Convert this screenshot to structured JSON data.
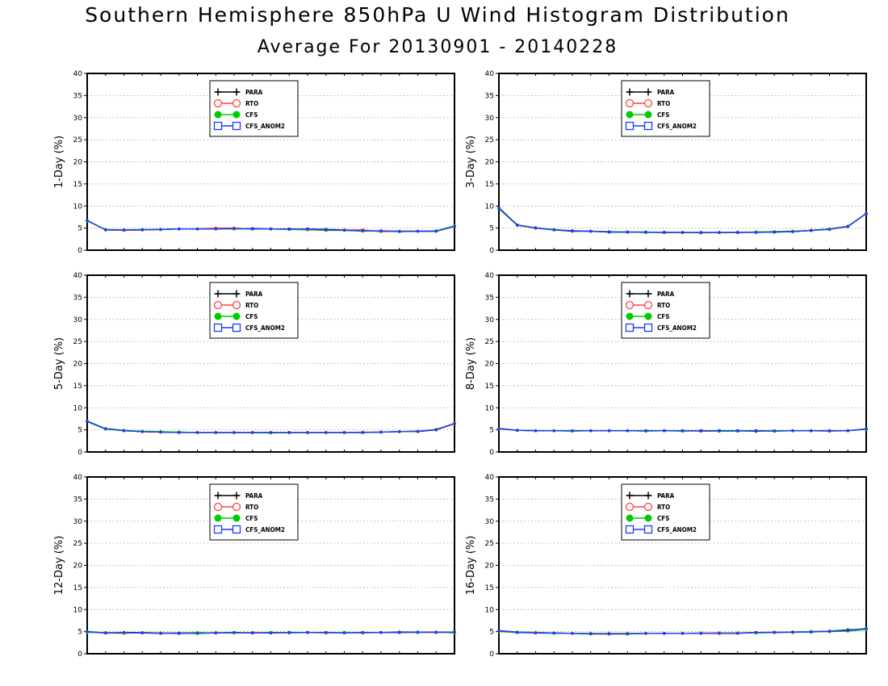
{
  "title": "Southern Hemisphere 850hPa U Wind Histogram Distribution",
  "subtitle": "Average For 20130901 - 20140228",
  "colors": {
    "PARA": "#000000",
    "RTO": "#ff4040",
    "CFS": "#00cc00",
    "CFS_ANOM2": "#1a3aff",
    "grid": "#999999"
  },
  "chart_data": [
    {
      "type": "line",
      "ylabel": "1-Day (%)",
      "ylim": [
        0,
        40
      ],
      "yticks": [
        "0",
        "5",
        "10",
        "15",
        "20",
        "25",
        "30",
        "35",
        "40"
      ],
      "grid": true,
      "legend_placement": "top-center",
      "x": [
        1,
        2,
        3,
        4,
        5,
        6,
        7,
        8,
        9,
        10,
        11,
        12,
        13,
        14,
        15,
        16,
        17,
        18,
        19,
        20,
        21
      ],
      "series": [
        {
          "name": "PARA",
          "values": [
            6.7,
            4.6,
            4.5,
            4.6,
            4.7,
            4.8,
            4.8,
            4.9,
            4.9,
            4.9,
            4.8,
            4.8,
            4.8,
            4.7,
            4.6,
            4.4,
            4.3,
            4.3,
            4.3,
            4.3,
            5.4
          ]
        },
        {
          "name": "RTO",
          "values": [
            6.7,
            4.6,
            4.5,
            4.6,
            4.7,
            4.8,
            4.8,
            5.0,
            5.0,
            4.8,
            4.8,
            4.7,
            4.6,
            4.5,
            4.6,
            4.6,
            4.2,
            4.3,
            4.3,
            4.3,
            5.4
          ]
        },
        {
          "name": "CFS",
          "values": [
            6.6,
            4.7,
            4.6,
            4.7,
            4.7,
            4.8,
            4.8,
            4.8,
            4.8,
            4.8,
            4.8,
            4.7,
            4.7,
            4.5,
            4.5,
            4.3,
            4.4,
            4.3,
            4.3,
            4.4,
            5.5
          ]
        },
        {
          "name": "CFS_ANOM2",
          "values": [
            6.7,
            4.6,
            4.6,
            4.6,
            4.7,
            4.8,
            4.8,
            4.8,
            4.9,
            4.8,
            4.8,
            4.8,
            4.8,
            4.6,
            4.5,
            4.4,
            4.4,
            4.2,
            4.3,
            4.3,
            5.4
          ]
        }
      ]
    },
    {
      "type": "line",
      "ylabel": "3-Day (%)",
      "ylim": [
        0,
        40
      ],
      "yticks": [
        "0",
        "5",
        "10",
        "15",
        "20",
        "25",
        "30",
        "35",
        "40"
      ],
      "grid": true,
      "legend_placement": "top-center",
      "x": [
        1,
        2,
        3,
        4,
        5,
        6,
        7,
        8,
        9,
        10,
        11,
        12,
        13,
        14,
        15,
        16,
        17,
        18,
        19,
        20,
        21
      ],
      "series": [
        {
          "name": "PARA",
          "values": [
            9.6,
            5.7,
            5.0,
            4.6,
            4.3,
            4.3,
            4.1,
            4.1,
            4.1,
            4.0,
            4.0,
            4.0,
            4.0,
            4.0,
            4.1,
            4.1,
            4.2,
            4.5,
            4.8,
            5.4,
            8.3
          ]
        },
        {
          "name": "RTO",
          "values": [
            9.5,
            5.7,
            5.1,
            4.6,
            4.4,
            4.3,
            4.2,
            4.1,
            4.0,
            4.1,
            4.0,
            4.0,
            4.0,
            4.1,
            4.1,
            4.2,
            4.3,
            4.4,
            4.8,
            5.3,
            8.3
          ]
        },
        {
          "name": "CFS",
          "values": [
            9.4,
            5.6,
            5.0,
            4.7,
            4.4,
            4.3,
            4.2,
            4.1,
            4.0,
            4.0,
            4.0,
            3.9,
            4.0,
            4.0,
            4.1,
            4.2,
            4.3,
            4.5,
            4.8,
            5.3,
            8.3
          ]
        },
        {
          "name": "CFS_ANOM2",
          "values": [
            9.5,
            5.7,
            5.0,
            4.6,
            4.4,
            4.3,
            4.1,
            4.1,
            4.1,
            4.0,
            4.0,
            4.0,
            4.0,
            4.0,
            4.0,
            4.1,
            4.2,
            4.5,
            4.7,
            5.4,
            8.3
          ]
        }
      ]
    },
    {
      "type": "line",
      "ylabel": "5-Day (%)",
      "ylim": [
        0,
        40
      ],
      "yticks": [
        "0",
        "5",
        "10",
        "15",
        "20",
        "25",
        "30",
        "35",
        "40"
      ],
      "grid": true,
      "legend_placement": "top-center",
      "x": [
        1,
        2,
        3,
        4,
        5,
        6,
        7,
        8,
        9,
        10,
        11,
        12,
        13,
        14,
        15,
        16,
        17,
        18,
        19,
        20,
        21
      ],
      "series": [
        {
          "name": "PARA",
          "values": [
            6.9,
            5.2,
            4.8,
            4.6,
            4.5,
            4.5,
            4.4,
            4.4,
            4.4,
            4.4,
            4.4,
            4.4,
            4.4,
            4.4,
            4.4,
            4.4,
            4.5,
            4.6,
            4.6,
            5.0,
            6.4
          ]
        },
        {
          "name": "RTO",
          "values": [
            6.9,
            5.3,
            4.9,
            4.6,
            4.5,
            4.4,
            4.4,
            4.4,
            4.4,
            4.4,
            4.4,
            4.4,
            4.4,
            4.4,
            4.4,
            4.5,
            4.5,
            4.6,
            4.7,
            5.1,
            6.5
          ]
        },
        {
          "name": "CFS",
          "values": [
            7.0,
            5.3,
            4.9,
            4.7,
            4.6,
            4.5,
            4.4,
            4.4,
            4.4,
            4.4,
            4.3,
            4.4,
            4.4,
            4.4,
            4.4,
            4.4,
            4.5,
            4.6,
            4.6,
            5.1,
            6.4
          ]
        },
        {
          "name": "CFS_ANOM2",
          "values": [
            6.9,
            5.2,
            4.8,
            4.6,
            4.5,
            4.4,
            4.4,
            4.4,
            4.4,
            4.4,
            4.4,
            4.4,
            4.4,
            4.4,
            4.4,
            4.4,
            4.5,
            4.6,
            4.7,
            5.0,
            6.4
          ]
        }
      ]
    },
    {
      "type": "line",
      "ylabel": "8-Day (%)",
      "ylim": [
        0,
        40
      ],
      "yticks": [
        "0",
        "5",
        "10",
        "15",
        "20",
        "25",
        "30",
        "35",
        "40"
      ],
      "grid": true,
      "legend_placement": "top-center",
      "x": [
        1,
        2,
        3,
        4,
        5,
        6,
        7,
        8,
        9,
        10,
        11,
        12,
        13,
        14,
        15,
        16,
        17,
        18,
        19,
        20,
        21
      ],
      "series": [
        {
          "name": "PARA",
          "values": [
            5.3,
            4.9,
            4.8,
            4.8,
            4.8,
            4.8,
            4.8,
            4.8,
            4.8,
            4.8,
            4.8,
            4.8,
            4.8,
            4.8,
            4.7,
            4.8,
            4.8,
            4.8,
            4.8,
            4.8,
            5.2
          ]
        },
        {
          "name": "RTO",
          "values": [
            5.2,
            4.9,
            4.8,
            4.8,
            4.8,
            4.8,
            4.8,
            4.8,
            4.8,
            4.8,
            4.8,
            4.7,
            4.7,
            4.8,
            4.8,
            4.8,
            4.8,
            4.8,
            4.7,
            4.8,
            5.2
          ]
        },
        {
          "name": "CFS",
          "values": [
            5.3,
            4.9,
            4.8,
            4.8,
            4.7,
            4.8,
            4.8,
            4.8,
            4.7,
            4.8,
            4.7,
            4.8,
            4.7,
            4.7,
            4.8,
            4.8,
            4.8,
            4.8,
            4.8,
            4.8,
            5.1
          ]
        },
        {
          "name": "CFS_ANOM2",
          "values": [
            5.3,
            4.9,
            4.8,
            4.8,
            4.8,
            4.8,
            4.8,
            4.8,
            4.8,
            4.8,
            4.8,
            4.8,
            4.8,
            4.8,
            4.8,
            4.7,
            4.8,
            4.8,
            4.8,
            4.8,
            5.2
          ]
        }
      ]
    },
    {
      "type": "line",
      "ylabel": "12-Day (%)",
      "ylim": [
        0,
        40
      ],
      "yticks": [
        "0",
        "5",
        "10",
        "15",
        "20",
        "25",
        "30",
        "35",
        "40"
      ],
      "grid": true,
      "legend_placement": "top-center",
      "x": [
        1,
        2,
        3,
        4,
        5,
        6,
        7,
        8,
        9,
        10,
        11,
        12,
        13,
        14,
        15,
        16,
        17,
        18,
        19,
        20,
        21
      ],
      "series": [
        {
          "name": "PARA",
          "values": [
            5.0,
            4.7,
            4.8,
            4.8,
            4.7,
            4.6,
            4.7,
            4.7,
            4.8,
            4.7,
            4.8,
            4.8,
            4.8,
            4.8,
            4.8,
            4.8,
            4.8,
            4.9,
            4.9,
            4.8,
            4.9
          ]
        },
        {
          "name": "RTO",
          "values": [
            4.9,
            4.7,
            4.6,
            4.8,
            4.6,
            4.7,
            4.6,
            4.8,
            4.7,
            4.8,
            4.7,
            4.8,
            4.8,
            4.7,
            4.8,
            4.7,
            4.8,
            4.8,
            4.8,
            4.8,
            4.8
          ]
        },
        {
          "name": "CFS",
          "values": [
            4.8,
            4.8,
            4.7,
            4.7,
            4.7,
            4.7,
            4.8,
            4.7,
            4.7,
            4.7,
            4.8,
            4.7,
            4.8,
            4.8,
            4.8,
            4.8,
            4.8,
            4.8,
            4.8,
            4.9,
            4.7
          ]
        },
        {
          "name": "CFS_ANOM2",
          "values": [
            5.0,
            4.7,
            4.8,
            4.7,
            4.6,
            4.7,
            4.6,
            4.7,
            4.8,
            4.7,
            4.7,
            4.8,
            4.8,
            4.8,
            4.7,
            4.8,
            4.8,
            4.8,
            4.9,
            4.9,
            4.9
          ]
        }
      ]
    },
    {
      "type": "line",
      "ylabel": "16-Day (%)",
      "ylim": [
        0,
        40
      ],
      "yticks": [
        "0",
        "5",
        "10",
        "15",
        "20",
        "25",
        "30",
        "35",
        "40"
      ],
      "grid": true,
      "legend_placement": "top-center",
      "x": [
        1,
        2,
        3,
        4,
        5,
        6,
        7,
        8,
        9,
        10,
        11,
        12,
        13,
        14,
        15,
        16,
        17,
        18,
        19,
        20,
        21
      ],
      "series": [
        {
          "name": "PARA",
          "values": [
            5.2,
            4.9,
            4.8,
            4.7,
            4.6,
            4.5,
            4.5,
            4.5,
            4.6,
            4.6,
            4.6,
            4.6,
            4.7,
            4.7,
            4.8,
            4.8,
            4.9,
            5.0,
            5.1,
            5.4,
            5.6
          ]
        },
        {
          "name": "RTO",
          "values": [
            5.0,
            4.8,
            4.8,
            4.7,
            4.6,
            4.6,
            4.6,
            4.6,
            4.6,
            4.6,
            4.6,
            4.7,
            4.7,
            4.7,
            4.8,
            4.9,
            4.8,
            5.0,
            5.0,
            5.2,
            5.7
          ]
        },
        {
          "name": "CFS",
          "values": [
            5.1,
            4.9,
            4.7,
            4.6,
            4.6,
            4.6,
            4.5,
            4.6,
            4.6,
            4.6,
            4.6,
            4.6,
            4.6,
            4.7,
            4.7,
            4.8,
            4.9,
            5.0,
            5.0,
            5.1,
            5.5
          ]
        },
        {
          "name": "CFS_ANOM2",
          "values": [
            5.2,
            4.8,
            4.7,
            4.7,
            4.6,
            4.5,
            4.5,
            4.5,
            4.6,
            4.6,
            4.6,
            4.6,
            4.6,
            4.6,
            4.8,
            4.8,
            4.9,
            4.9,
            5.1,
            5.3,
            5.7
          ]
        }
      ]
    }
  ]
}
